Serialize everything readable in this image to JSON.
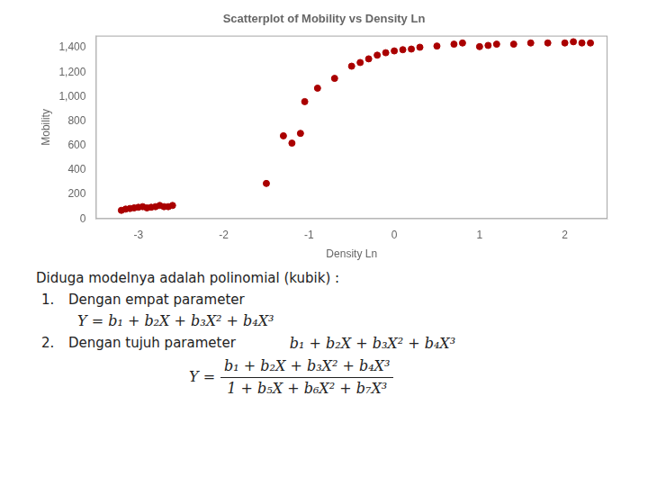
{
  "chart_data": {
    "type": "scatter",
    "title": "Scatterplot of Mobility vs Density Ln",
    "xlabel": "Density Ln",
    "ylabel": "Mobility",
    "color": "#aa0000",
    "grid": false,
    "xlim": [
      -3.5,
      2.5
    ],
    "ylim": [
      0,
      1500
    ],
    "xticks": [
      -3,
      -2,
      -1,
      0,
      1,
      2
    ],
    "yticks": [
      0,
      200,
      400,
      600,
      800,
      1000,
      1200,
      1400
    ],
    "x": [
      -3.2,
      -3.15,
      -3.1,
      -3.05,
      -3.0,
      -2.95,
      -2.9,
      -2.85,
      -2.8,
      -2.75,
      -2.7,
      -2.65,
      -2.6,
      -1.5,
      -1.3,
      -1.2,
      -1.1,
      -1.05,
      -0.9,
      -0.7,
      -0.5,
      -0.4,
      -0.3,
      -0.2,
      -0.1,
      0.0,
      0.1,
      0.2,
      0.3,
      0.5,
      0.7,
      0.8,
      1.0,
      1.1,
      1.2,
      1.4,
      1.6,
      1.8,
      2.0,
      2.1,
      2.2,
      2.3
    ],
    "values": [
      70,
      80,
      85,
      90,
      95,
      100,
      90,
      95,
      100,
      110,
      100,
      100,
      110,
      290,
      680,
      620,
      700,
      960,
      1070,
      1150,
      1250,
      1280,
      1310,
      1340,
      1360,
      1375,
      1385,
      1390,
      1405,
      1415,
      1430,
      1440,
      1410,
      1420,
      1430,
      1430,
      1440,
      1440,
      1440,
      1450,
      1440,
      1440
    ],
    "annotations": [
      "Diduga modelnya adalah polinomial (kubik) :",
      "1.",
      "Dengan empat parameter",
      "Y = b₁ + b₂X + b₃X² + b₄X³",
      "2.",
      "Dengan tujuh parameter",
      "b₁ + b₂X + b₃X² + b₄X³",
      "Y =",
      "b₁ + b₂X + b₃X² + b₄X³",
      "1 + b₅X + b₆X² + b₇X³"
    ]
  }
}
